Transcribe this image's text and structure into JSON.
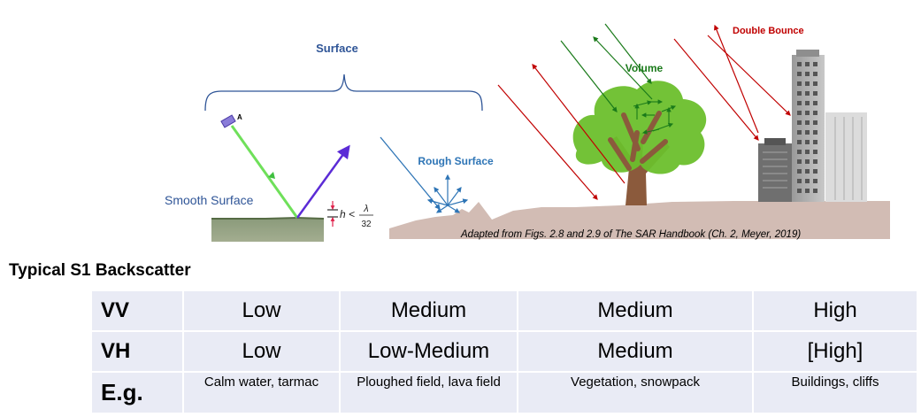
{
  "diagram": {
    "surface_label": "Surface",
    "point_label": "A",
    "smooth_surface_label": "Smooth Surface",
    "roughness_formula_h": "h <",
    "roughness_formula_lambda": "λ",
    "roughness_formula_32": "32",
    "rough_surface_label": "Rough Surface",
    "volume_label": "Volume",
    "double_bounce_label": "Double Bounce",
    "caption": "Adapted from Figs. 2.8 and 2.9 of The SAR Handbook (Ch. 2, Meyer, 2019)",
    "colors": {
      "surface_label": "#2f5597",
      "smooth_label": "#2f5597",
      "rough_arrows": "#2e75b6",
      "volume_arrows": "#1a7a1a",
      "double_bounce": "#c00000",
      "ground": "#d2bcb4",
      "tree_canopy": "#6cbf2c",
      "trunk": "#8b5a3c",
      "incident_green": "#6fe05a",
      "reflected_purple": "#5b2bd6"
    }
  },
  "table": {
    "heading": "Typical S1 Backscatter",
    "rows": [
      {
        "label": "VV",
        "cells": [
          "Low",
          "Medium",
          "Medium",
          "High"
        ]
      },
      {
        "label": "VH",
        "cells": [
          "Low",
          "Low-Medium",
          "Medium",
          "[High]"
        ]
      },
      {
        "label": "E.g.",
        "cells": [
          "Calm water, tarmac",
          "Ploughed field, lava field",
          "Vegetation, snowpack",
          "Buildings, cliffs"
        ]
      }
    ]
  }
}
